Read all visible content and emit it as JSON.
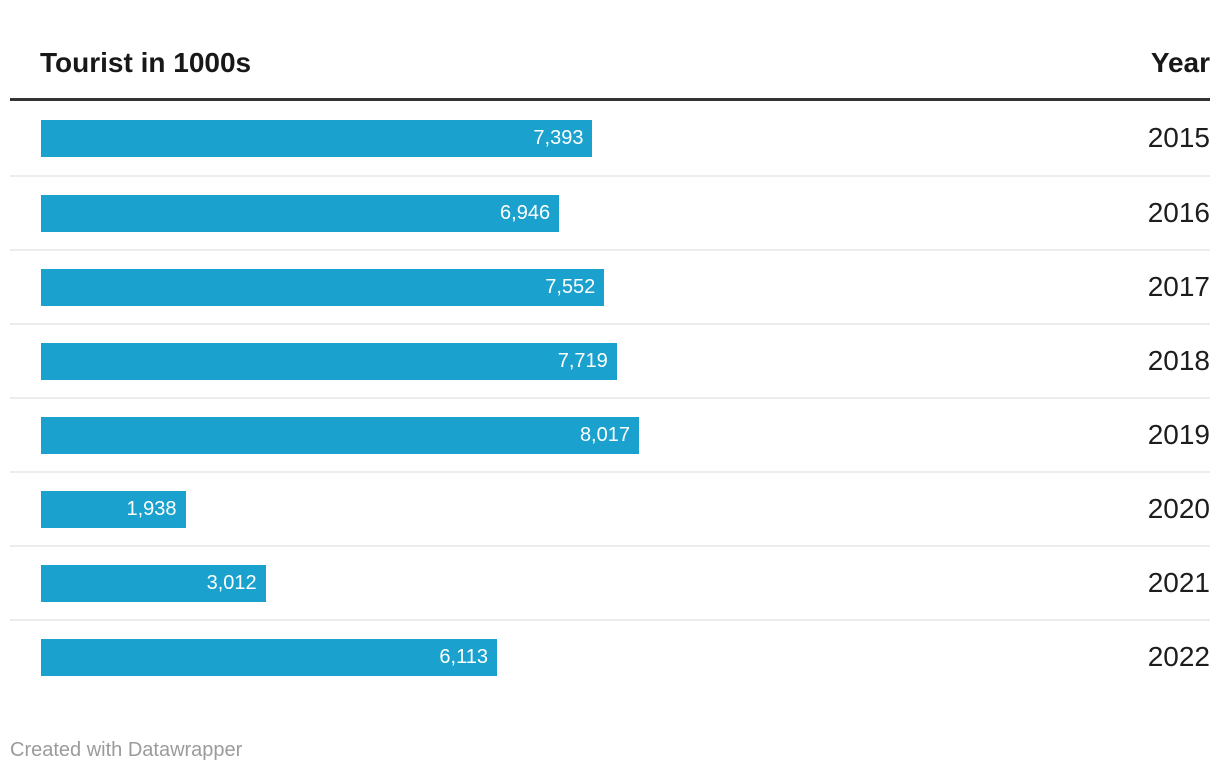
{
  "header": {
    "left_label": "Tourist in 1000s",
    "right_label": "Year"
  },
  "footer": {
    "credit": "Created with Datawrapper"
  },
  "colors": {
    "bar": "#1aa1ce",
    "header_rule": "#333333",
    "row_divider": "#ececec",
    "bar_label": "#ffffff",
    "year_text": "#1d1d1d",
    "footer_text": "#9b9b9b",
    "background": "#ffffff"
  },
  "chart_data": {
    "type": "bar",
    "orientation": "horizontal",
    "title": "Tourist in 1000s",
    "xlabel": "Tourist in 1000s",
    "ylabel": "Year",
    "categories": [
      "2015",
      "2016",
      "2017",
      "2018",
      "2019",
      "2020",
      "2021",
      "2022"
    ],
    "values": [
      7393,
      6946,
      7552,
      7719,
      8017,
      1938,
      3012,
      6113
    ],
    "value_labels": [
      "7,393",
      "6,946",
      "7,552",
      "7,719",
      "8,017",
      "1,938",
      "3,012",
      "6,113"
    ],
    "xlim": [
      0,
      8017
    ],
    "grid": false,
    "legend": false,
    "value_labels_position": "inside-end",
    "year_labels_position": "right-column"
  }
}
